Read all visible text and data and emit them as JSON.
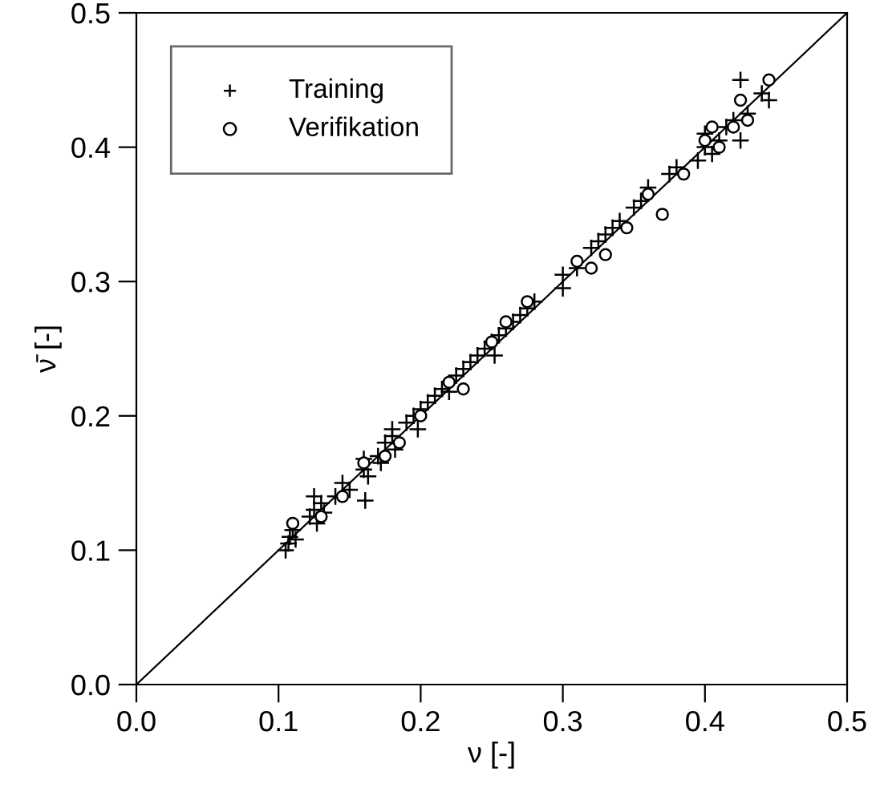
{
  "chart_data": {
    "type": "scatter",
    "xlabel": "ν [-]",
    "ylabel": "ν̄ [-]",
    "xlim": [
      0,
      0.5
    ],
    "ylim": [
      0,
      0.5
    ],
    "xticks": [
      {
        "value": 0,
        "label": "0.0"
      },
      0.1,
      0.2,
      0.3,
      0.4,
      0.5
    ],
    "yticks": [
      {
        "value": 0,
        "label": "0.0"
      },
      0.1,
      0.2,
      0.3,
      0.4,
      0.5
    ],
    "grid": false,
    "legend": "top left",
    "series": [
      {
        "name": "Training",
        "color": "#000000",
        "marker": "cross",
        "x": [
          0.105,
          0.107,
          0.108,
          0.11,
          0.112,
          0.122,
          0.125,
          0.127,
          0.13,
          0.132,
          0.14,
          0.145,
          0.15,
          0.16,
          0.16,
          0.163,
          0.17,
          0.172,
          0.175,
          0.18,
          0.18,
          0.182,
          0.19,
          0.195,
          0.198,
          0.2,
          0.205,
          0.21,
          0.215,
          0.22,
          0.225,
          0.23,
          0.235,
          0.24,
          0.245,
          0.25,
          0.252,
          0.255,
          0.26,
          0.265,
          0.27,
          0.275,
          0.28,
          0.3,
          0.3,
          0.31,
          0.32,
          0.325,
          0.33,
          0.335,
          0.34,
          0.35,
          0.355,
          0.36,
          0.375,
          0.38,
          0.395,
          0.4,
          0.4,
          0.405,
          0.41,
          0.415,
          0.42,
          0.425,
          0.425,
          0.43,
          0.44,
          0.445,
          0.125,
          0.161
        ],
        "values": [
          0.1,
          0.105,
          0.11,
          0.115,
          0.108,
          0.125,
          0.13,
          0.12,
          0.135,
          0.128,
          0.14,
          0.15,
          0.145,
          0.16,
          0.168,
          0.155,
          0.17,
          0.165,
          0.18,
          0.185,
          0.19,
          0.175,
          0.195,
          0.2,
          0.19,
          0.205,
          0.21,
          0.215,
          0.22,
          0.218,
          0.23,
          0.235,
          0.24,
          0.245,
          0.25,
          0.255,
          0.245,
          0.26,
          0.265,
          0.27,
          0.275,
          0.28,
          0.285,
          0.305,
          0.295,
          0.31,
          0.325,
          0.33,
          0.335,
          0.34,
          0.345,
          0.355,
          0.36,
          0.37,
          0.38,
          0.385,
          0.39,
          0.4,
          0.41,
          0.395,
          0.405,
          0.415,
          0.42,
          0.45,
          0.405,
          0.425,
          0.44,
          0.435,
          0.14,
          0.137
        ]
      },
      {
        "name": "Verifikation",
        "color": "#000000",
        "marker": "circle",
        "x": [
          0.11,
          0.13,
          0.145,
          0.16,
          0.175,
          0.185,
          0.2,
          0.22,
          0.23,
          0.25,
          0.26,
          0.275,
          0.31,
          0.32,
          0.33,
          0.345,
          0.37,
          0.36,
          0.385,
          0.4,
          0.405,
          0.41,
          0.42,
          0.425,
          0.43,
          0.445
        ],
        "values": [
          0.12,
          0.125,
          0.14,
          0.165,
          0.17,
          0.18,
          0.2,
          0.225,
          0.22,
          0.255,
          0.27,
          0.285,
          0.315,
          0.31,
          0.32,
          0.34,
          0.35,
          0.365,
          0.38,
          0.405,
          0.415,
          0.4,
          0.415,
          0.435,
          0.42,
          0.45
        ]
      },
      {
        "type": "line",
        "color": "#000000",
        "x": [
          0,
          0.5
        ],
        "values": [
          0,
          0.5
        ]
      }
    ]
  }
}
